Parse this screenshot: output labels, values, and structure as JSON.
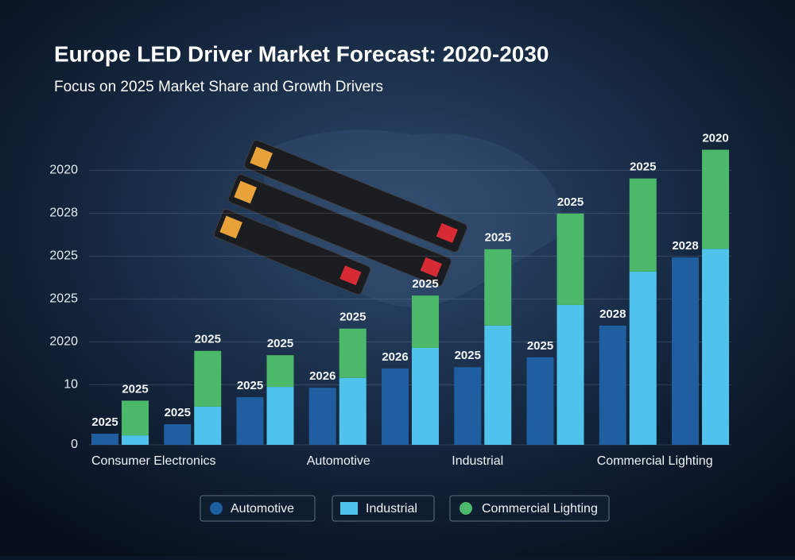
{
  "chart_data": {
    "type": "bar",
    "title": "Europe LED Driver Market Forecast: 2020-2030",
    "subtitle": "Focus on 2025 Market Share and Growth Drivers",
    "categories": [
      "Consumer Electronics",
      null,
      null,
      "Automotive",
      null,
      "Industrial",
      null,
      "Commercial Lighting",
      null
    ],
    "series": [
      {
        "name": "Automotive",
        "color": "#1f5fa0",
        "values": [
          2.6,
          4.8,
          11.1,
          13.3,
          17.8,
          18.1,
          20.4,
          27.8,
          43.7
        ],
        "labels": [
          "2025",
          "2025",
          "2025",
          "2026",
          "2026",
          "2025",
          "2025",
          "2028",
          "2028"
        ]
      },
      {
        "name": "Industrial",
        "color": "#4fc3ec",
        "values": [
          2.2,
          8.9,
          13.5,
          15.6,
          22.6,
          27.8,
          32.6,
          40.4,
          45.7
        ]
      },
      {
        "name": "Commercial Lighting",
        "color": "#4cb86a",
        "values": [
          8.1,
          13,
          7.4,
          11.5,
          12.2,
          17.8,
          21.3,
          21.7,
          23.1
        ],
        "labels": [
          "2025",
          "2025",
          "2025",
          "2025",
          "2025",
          "2025",
          "2025",
          "2025",
          "2020"
        ]
      }
    ],
    "ylim": [
      0,
      70
    ],
    "yticks": [
      0,
      {
        "value": 14,
        "label": "10"
      },
      {
        "value": 24,
        "label": "2020"
      },
      {
        "value": 34,
        "label": "2025"
      },
      {
        "value": 44,
        "label": "2025"
      },
      {
        "value": 54,
        "label": "2028"
      },
      {
        "value": 64,
        "label": "2020"
      }
    ],
    "grid": true
  }
}
